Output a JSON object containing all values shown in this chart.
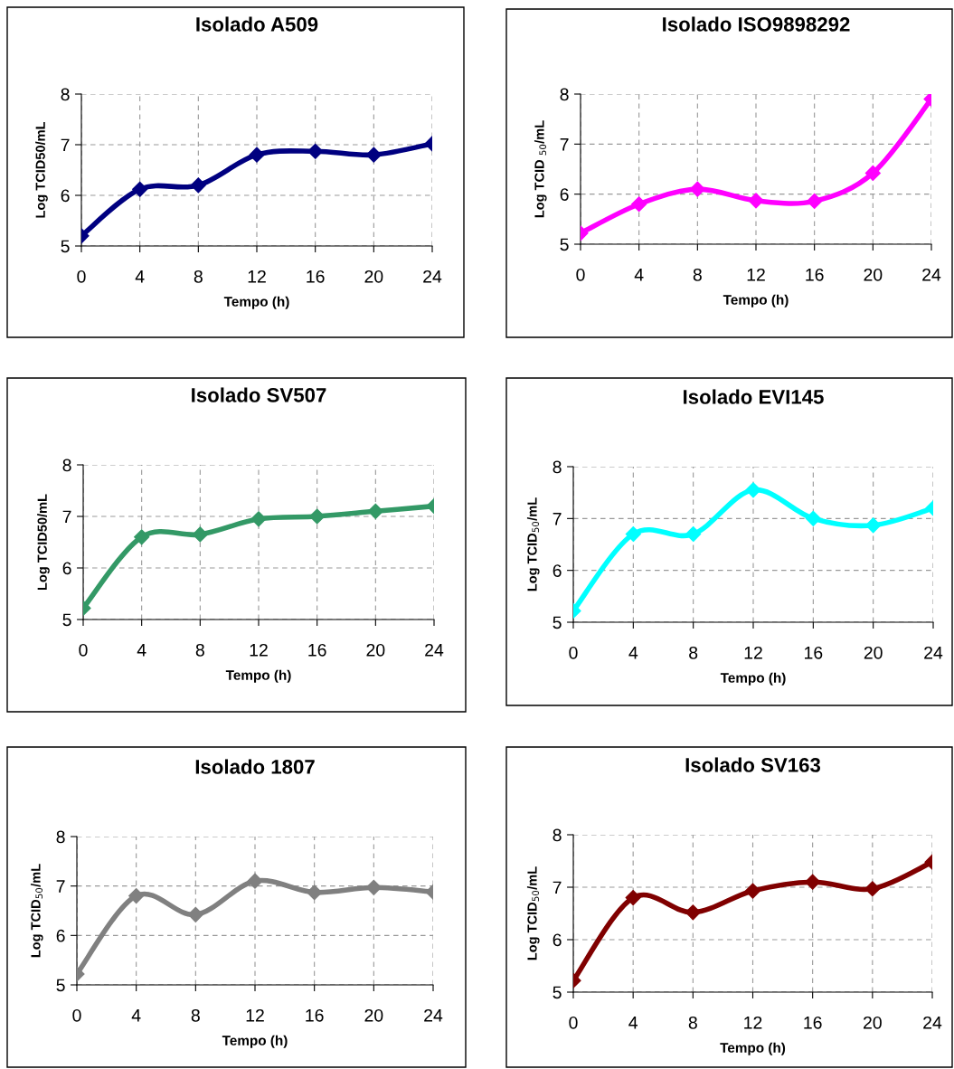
{
  "chart_data": [
    {
      "type": "line",
      "title": "Isolado A509",
      "xlabel": "Tempo (h)",
      "ylabel": "Log TCID50/mL",
      "x": [
        0,
        4,
        8,
        12,
        16,
        20,
        24
      ],
      "xlim": [
        0,
        24
      ],
      "xticks": [
        0,
        4,
        8,
        12,
        16,
        20,
        24
      ],
      "ylim": [
        5,
        8
      ],
      "yticks": [
        5,
        6,
        7,
        8
      ],
      "grid": true,
      "marker": "diamond",
      "line_style": "solid",
      "series": [
        {
          "color": "#000080",
          "values": [
            5.2,
            6.12,
            6.2,
            6.8,
            6.87,
            6.8,
            7.02
          ]
        }
      ]
    },
    {
      "type": "line",
      "title": "Isolado ISO9898292",
      "xlabel": "Tempo (h)",
      "ylabel": "Log TCID $_{50}$/mL",
      "x": [
        0,
        4,
        8,
        12,
        16,
        20,
        24
      ],
      "xlim": [
        0,
        24
      ],
      "xticks": [
        0,
        4,
        8,
        12,
        16,
        20,
        24
      ],
      "ylim": [
        5,
        8
      ],
      "yticks": [
        5,
        6,
        7,
        8
      ],
      "grid": true,
      "marker": "diamond",
      "line_style": "solid",
      "series": [
        {
          "color": "#ff00ff",
          "values": [
            5.22,
            5.8,
            6.1,
            5.87,
            5.86,
            6.42,
            7.9
          ]
        }
      ]
    },
    {
      "type": "line",
      "title": "Isolado SV507",
      "xlabel": "Tempo (h)",
      "ylabel": "Log TCID50/mL",
      "x": [
        0,
        4,
        8,
        12,
        16,
        20,
        24
      ],
      "xlim": [
        0,
        24
      ],
      "xticks": [
        0,
        4,
        8,
        12,
        16,
        20,
        24
      ],
      "ylim": [
        5,
        8
      ],
      "yticks": [
        5,
        6,
        7,
        8
      ],
      "grid": true,
      "marker": "diamond",
      "line_style": "solid",
      "series": [
        {
          "color": "#339966",
          "values": [
            5.22,
            6.6,
            6.65,
            6.95,
            7.0,
            7.1,
            7.2
          ]
        }
      ]
    },
    {
      "type": "line",
      "title": "Isolado EVI145",
      "xlabel": "Tempo (h)",
      "ylabel": "Log TCID$_{50}$/mL",
      "x": [
        0,
        4,
        8,
        12,
        16,
        20,
        24
      ],
      "xlim": [
        0,
        24
      ],
      "xticks": [
        0,
        4,
        8,
        12,
        16,
        20,
        24
      ],
      "ylim": [
        5,
        8
      ],
      "yticks": [
        5,
        6,
        7,
        8
      ],
      "grid": true,
      "marker": "diamond",
      "line_style": "solid",
      "series": [
        {
          "color": "#00ffff",
          "values": [
            5.22,
            6.7,
            6.7,
            7.55,
            7.0,
            6.87,
            7.2
          ]
        }
      ]
    },
    {
      "type": "line",
      "title": "Isolado 1807",
      "xlabel": "Tempo (h)",
      "ylabel": "Log TCID$_{50}$/mL",
      "x": [
        0,
        4,
        8,
        12,
        16,
        20,
        24
      ],
      "xlim": [
        0,
        24
      ],
      "xticks": [
        0,
        4,
        8,
        12,
        16,
        20,
        24
      ],
      "ylim": [
        5,
        8
      ],
      "yticks": [
        5,
        6,
        7,
        8
      ],
      "grid": true,
      "marker": "diamond",
      "line_style": "solid",
      "series": [
        {
          "color": "#808080",
          "values": [
            5.22,
            6.8,
            6.42,
            7.1,
            6.87,
            6.97,
            6.88
          ]
        }
      ]
    },
    {
      "type": "line",
      "title": "Isolado SV163",
      "xlabel": "Tempo (h)",
      "ylabel": "Log TCID$_{50}$/mL",
      "x": [
        0,
        4,
        8,
        12,
        16,
        20,
        24
      ],
      "xlim": [
        0,
        24
      ],
      "xticks": [
        0,
        4,
        8,
        12,
        16,
        20,
        24
      ],
      "ylim": [
        5,
        8
      ],
      "yticks": [
        5,
        6,
        7,
        8
      ],
      "grid": true,
      "marker": "diamond",
      "line_style": "solid",
      "series": [
        {
          "color": "#800000",
          "values": [
            5.22,
            6.8,
            6.52,
            6.93,
            7.1,
            6.97,
            7.48
          ]
        }
      ]
    }
  ]
}
